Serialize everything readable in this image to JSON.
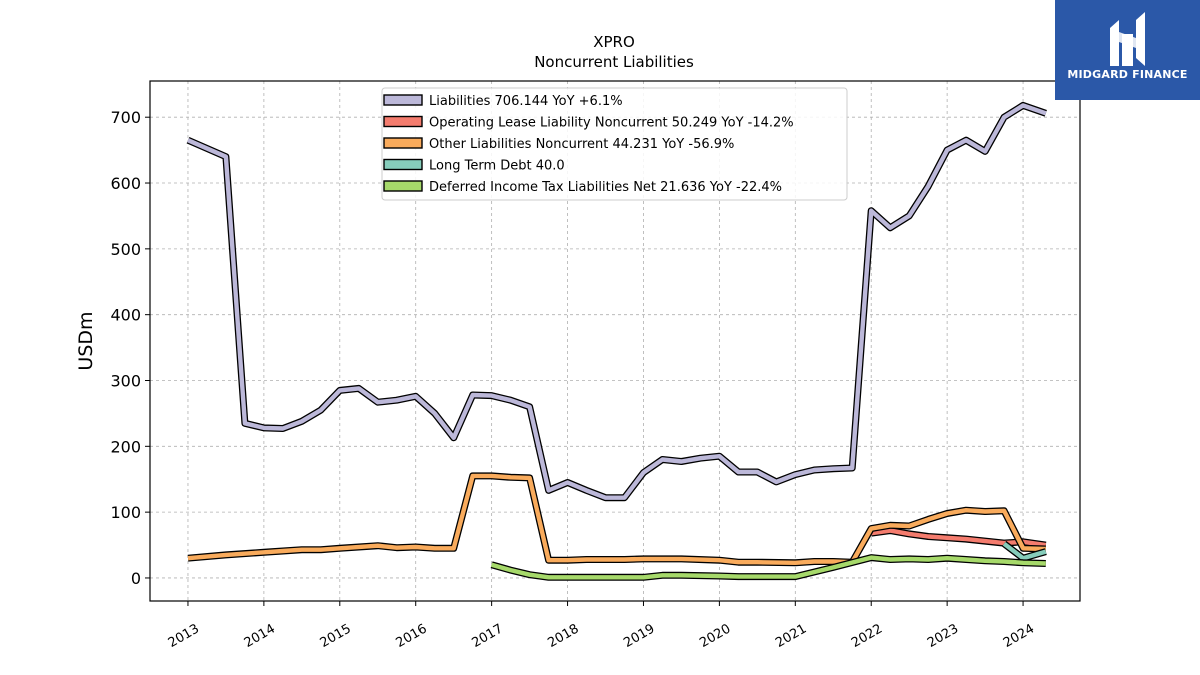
{
  "brand": {
    "name": "MIDGARD FINANCE",
    "bg_color": "#2b58a8"
  },
  "chart_data": {
    "type": "line",
    "title": "XPRO",
    "subtitle": "Noncurrent  Liabilities",
    "xlabel": "",
    "ylabel": "USDm",
    "xlim": [
      2012.5,
      2024.75
    ],
    "ylim": [
      -35,
      755
    ],
    "x_ticks": [
      2013,
      2014,
      2015,
      2016,
      2017,
      2018,
      2019,
      2020,
      2021,
      2022,
      2023,
      2024
    ],
    "x_tick_labels": [
      "2013",
      "2014",
      "2015",
      "2016",
      "2017",
      "2018",
      "2019",
      "2020",
      "2021",
      "2022",
      "2023",
      "2024"
    ],
    "y_ticks": [
      0,
      100,
      200,
      300,
      400,
      500,
      600,
      700
    ],
    "y_tick_labels": [
      "0",
      "100",
      "200",
      "300",
      "400",
      "500",
      "600",
      "700"
    ],
    "grid": true,
    "legend_position": "top-center",
    "series": [
      {
        "name": "Liabilities",
        "legend_label": "Liabilities  706.144 YoY +6.1%",
        "color": "#bcb8d9",
        "points": [
          [
            2013.0,
            665
          ],
          [
            2013.5,
            640
          ],
          [
            2013.75,
            235
          ],
          [
            2014.0,
            228
          ],
          [
            2014.25,
            227
          ],
          [
            2014.5,
            238
          ],
          [
            2014.75,
            255
          ],
          [
            2015.0,
            285
          ],
          [
            2015.25,
            288
          ],
          [
            2015.5,
            267
          ],
          [
            2015.75,
            270
          ],
          [
            2016.0,
            276
          ],
          [
            2016.25,
            250
          ],
          [
            2016.5,
            213
          ],
          [
            2016.75,
            278
          ],
          [
            2017.0,
            277
          ],
          [
            2017.25,
            270
          ],
          [
            2017.5,
            260
          ],
          [
            2017.75,
            133
          ],
          [
            2018.0,
            145
          ],
          [
            2018.25,
            133
          ],
          [
            2018.5,
            122
          ],
          [
            2018.75,
            122
          ],
          [
            2019.0,
            160
          ],
          [
            2019.25,
            180
          ],
          [
            2019.5,
            177
          ],
          [
            2019.75,
            182
          ],
          [
            2020.0,
            185
          ],
          [
            2020.25,
            161
          ],
          [
            2020.5,
            161
          ],
          [
            2020.75,
            146
          ],
          [
            2021.0,
            157
          ],
          [
            2021.25,
            164
          ],
          [
            2021.5,
            166
          ],
          [
            2021.75,
            167
          ],
          [
            2022.0,
            558
          ],
          [
            2022.25,
            532
          ],
          [
            2022.5,
            550
          ],
          [
            2022.75,
            595
          ],
          [
            2023.0,
            650
          ],
          [
            2023.25,
            665
          ],
          [
            2023.5,
            648
          ],
          [
            2023.75,
            700
          ],
          [
            2024.0,
            718
          ],
          [
            2024.3,
            706
          ]
        ]
      },
      {
        "name": "Operating Lease Liability Noncurrent",
        "legend_label": "Operating Lease Liability Noncurrent  50.249 YoY -14.2%",
        "color": "#f47c6e",
        "points": [
          [
            2022.0,
            68
          ],
          [
            2022.25,
            72
          ],
          [
            2022.5,
            67
          ],
          [
            2022.75,
            63
          ],
          [
            2023.0,
            61
          ],
          [
            2023.25,
            59
          ],
          [
            2023.5,
            56
          ],
          [
            2023.75,
            53
          ],
          [
            2024.0,
            55
          ],
          [
            2024.3,
            50
          ]
        ]
      },
      {
        "name": "Other Liabilities Noncurrent",
        "legend_label": "Other Liabilities Noncurrent  44.231 YoY -56.9%",
        "color": "#f9ab5c",
        "points": [
          [
            2013.0,
            30
          ],
          [
            2013.5,
            35
          ],
          [
            2014.0,
            39
          ],
          [
            2014.25,
            41
          ],
          [
            2014.5,
            43
          ],
          [
            2014.75,
            43
          ],
          [
            2015.0,
            45
          ],
          [
            2015.5,
            49
          ],
          [
            2015.75,
            46
          ],
          [
            2016.0,
            47
          ],
          [
            2016.25,
            45
          ],
          [
            2016.5,
            45
          ],
          [
            2016.75,
            155
          ],
          [
            2017.0,
            155
          ],
          [
            2017.25,
            153
          ],
          [
            2017.5,
            152
          ],
          [
            2017.75,
            27
          ],
          [
            2018.0,
            27
          ],
          [
            2018.25,
            28
          ],
          [
            2018.75,
            28
          ],
          [
            2019.0,
            29
          ],
          [
            2019.5,
            29
          ],
          [
            2020.0,
            27
          ],
          [
            2020.25,
            24
          ],
          [
            2020.5,
            24
          ],
          [
            2021.0,
            23
          ],
          [
            2021.25,
            25
          ],
          [
            2021.5,
            25
          ],
          [
            2021.75,
            24
          ],
          [
            2022.0,
            75
          ],
          [
            2022.25,
            80
          ],
          [
            2022.5,
            79
          ],
          [
            2022.75,
            89
          ],
          [
            2023.0,
            98
          ],
          [
            2023.25,
            103
          ],
          [
            2023.5,
            101
          ],
          [
            2023.75,
            102
          ],
          [
            2024.0,
            45
          ],
          [
            2024.3,
            44
          ]
        ]
      },
      {
        "name": "Long Term Debt",
        "legend_label": "Long Term Debt  40.0",
        "color": "#86cdbb",
        "points": [
          [
            2023.75,
            52
          ],
          [
            2024.0,
            30
          ],
          [
            2024.3,
            40
          ]
        ]
      },
      {
        "name": "Deferred Income Tax Liabilities Net",
        "legend_label": "Deferred Income Tax Liabilities Net  21.636 YoY -22.4%",
        "color": "#a6d96a",
        "points": [
          [
            2017.0,
            20
          ],
          [
            2017.25,
            12
          ],
          [
            2017.5,
            5
          ],
          [
            2017.75,
            1
          ],
          [
            2018.0,
            1
          ],
          [
            2018.5,
            1
          ],
          [
            2019.0,
            1
          ],
          [
            2019.25,
            4
          ],
          [
            2019.5,
            4
          ],
          [
            2020.0,
            3
          ],
          [
            2020.25,
            2
          ],
          [
            2020.5,
            2
          ],
          [
            2021.0,
            2
          ],
          [
            2021.5,
            16
          ],
          [
            2022.0,
            31
          ],
          [
            2022.25,
            28
          ],
          [
            2022.5,
            29
          ],
          [
            2022.75,
            28
          ],
          [
            2023.0,
            30
          ],
          [
            2023.25,
            28
          ],
          [
            2023.5,
            26
          ],
          [
            2023.75,
            25
          ],
          [
            2024.0,
            23
          ],
          [
            2024.3,
            22
          ]
        ]
      }
    ]
  }
}
